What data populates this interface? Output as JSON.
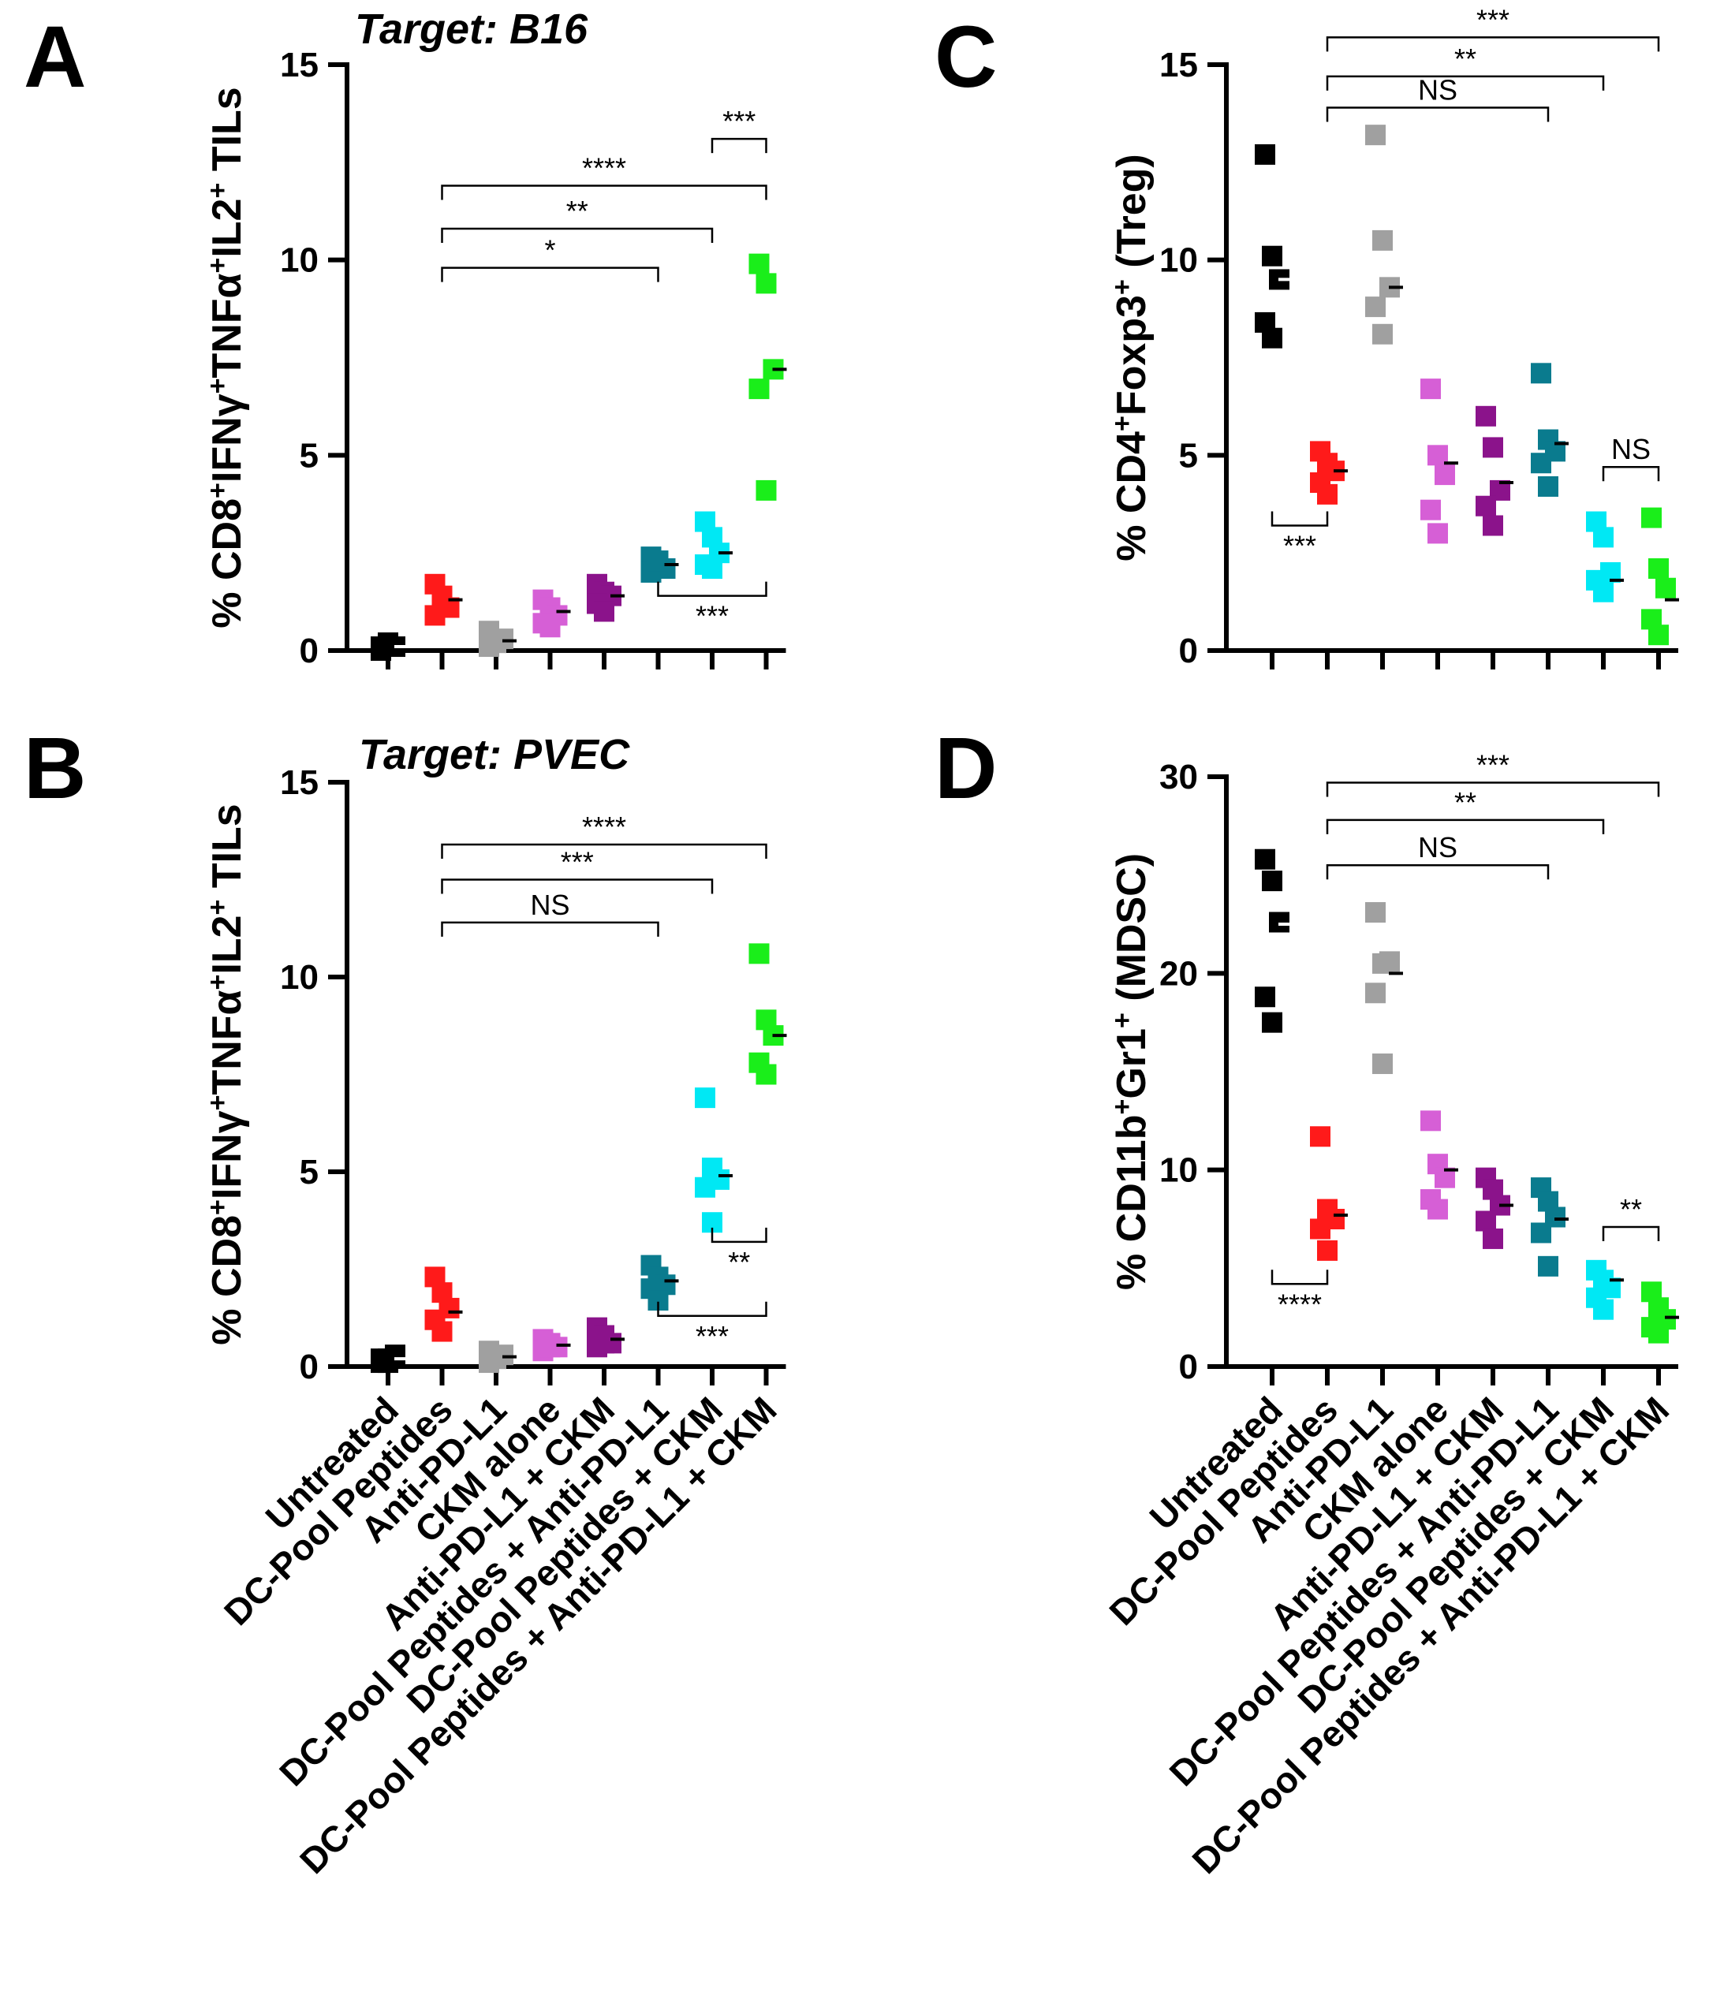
{
  "chart_data": [
    {
      "panel": "A",
      "type": "scatter",
      "title": "Target: B16",
      "ylabel_parts": [
        {
          "t": "% CD8"
        },
        {
          "t": "+",
          "sup": true
        },
        {
          "t": "IFNγ"
        },
        {
          "t": "+",
          "sup": true
        },
        {
          "t": "TNFα"
        },
        {
          "t": "+",
          "sup": true
        },
        {
          "t": "IL2"
        },
        {
          "t": "+",
          "sup": true
        },
        {
          "t": " TILs"
        }
      ],
      "ylim": [
        0,
        15
      ],
      "yticks": [
        0,
        5,
        10,
        15
      ],
      "categories": [
        "Untreated",
        "DC-Pool Peptides",
        "Anti-PD-L1",
        "CKM alone",
        "Anti-PD-L1 + CKM",
        "DC-Pool Peptides + Anti-PD-L1",
        "DC-Pool Peptides + CKM",
        "DC-Pool Peptides + Anti-PD-L1 + CKM"
      ],
      "show_category_labels": false,
      "values": [
        [
          0.1,
          0.2,
          0.1,
          0.0,
          0.2
        ],
        [
          1.7,
          1.4,
          1.1,
          0.9,
          1.2
        ],
        [
          0.5,
          0.2,
          0.3,
          0.1,
          0.2
        ],
        [
          1.3,
          1.1,
          0.9,
          0.7,
          0.6
        ],
        [
          1.7,
          1.5,
          1.4,
          1.2,
          1.0
        ],
        [
          2.4,
          2.2,
          2.1,
          2.0,
          2.3
        ],
        [
          3.3,
          2.9,
          2.5,
          2.2,
          2.1
        ],
        [
          9.9,
          9.4,
          7.2,
          6.7,
          4.1
        ]
      ],
      "means": [
        0.1,
        1.3,
        0.25,
        1.0,
        1.4,
        2.2,
        2.5,
        7.2
      ],
      "brackets": [
        {
          "from": 1,
          "to": 5,
          "y": 9.8,
          "label": "*",
          "side": "above"
        },
        {
          "from": 1,
          "to": 6,
          "y": 10.8,
          "label": "**",
          "side": "above"
        },
        {
          "from": 1,
          "to": 7,
          "y": 11.9,
          "label": "****",
          "side": "above"
        },
        {
          "from": 6,
          "to": 7,
          "y": 13.1,
          "label": "***",
          "side": "above"
        },
        {
          "from": 5,
          "to": 7,
          "y": 1.4,
          "label": "***",
          "side": "below"
        }
      ]
    },
    {
      "panel": "B",
      "type": "scatter",
      "title": "Target: PVEC",
      "ylabel_parts": [
        {
          "t": "% CD8"
        },
        {
          "t": "+",
          "sup": true
        },
        {
          "t": "IFNγ"
        },
        {
          "t": "+",
          "sup": true
        },
        {
          "t": "TNFα"
        },
        {
          "t": "+",
          "sup": true
        },
        {
          "t": "IL2"
        },
        {
          "t": "+",
          "sup": true
        },
        {
          "t": " TILs"
        }
      ],
      "ylim": [
        0,
        15
      ],
      "yticks": [
        0,
        5,
        10,
        15
      ],
      "categories": [
        "Untreated",
        "DC-Pool Peptides",
        "Anti-PD-L1",
        "CKM alone",
        "Anti-PD-L1 + CKM",
        "DC-Pool Peptides + Anti-PD-L1",
        "DC-Pool Peptides + CKM",
        "DC-Pool Peptides + Anti-PD-L1 + CKM"
      ],
      "show_category_labels": true,
      "values": [
        [
          0.2,
          0.1,
          0.3,
          0.1,
          0.2
        ],
        [
          2.3,
          1.9,
          1.5,
          1.2,
          0.9
        ],
        [
          0.4,
          0.2,
          0.3,
          0.1,
          0.2
        ],
        [
          0.7,
          0.6,
          0.5,
          0.4,
          0.5
        ],
        [
          1.0,
          0.8,
          0.6,
          0.5,
          0.6
        ],
        [
          2.6,
          2.3,
          2.1,
          2.0,
          1.7
        ],
        [
          6.9,
          5.1,
          4.8,
          4.6,
          3.7
        ],
        [
          10.6,
          8.9,
          8.5,
          7.8,
          7.5
        ]
      ],
      "means": [
        0.2,
        1.4,
        0.25,
        0.55,
        0.7,
        2.2,
        4.9,
        8.5
      ],
      "brackets": [
        {
          "from": 1,
          "to": 5,
          "y": 11.4,
          "label": "NS",
          "side": "above"
        },
        {
          "from": 1,
          "to": 6,
          "y": 12.5,
          "label": "***",
          "side": "above"
        },
        {
          "from": 1,
          "to": 7,
          "y": 13.4,
          "label": "****",
          "side": "above"
        },
        {
          "from": 6,
          "to": 7,
          "y": 3.2,
          "label": "**",
          "side": "below"
        },
        {
          "from": 5,
          "to": 7,
          "y": 1.3,
          "label": "***",
          "side": "below"
        }
      ]
    },
    {
      "panel": "C",
      "type": "scatter",
      "title": "",
      "ylabel_parts": [
        {
          "t": "% CD4"
        },
        {
          "t": "+",
          "sup": true
        },
        {
          "t": "Foxp3"
        },
        {
          "t": "+",
          "sup": true
        },
        {
          "t": " (Treg)"
        }
      ],
      "ylim": [
        0,
        15
      ],
      "yticks": [
        0,
        5,
        10,
        15
      ],
      "categories": [
        "Untreated",
        "DC-Pool Peptides",
        "Anti-PD-L1",
        "CKM alone",
        "Anti-PD-L1 + CKM",
        "DC-Pool Peptides + Anti-PD-L1",
        "DC-Pool Peptides + CKM",
        "DC-Pool Peptides + Anti-PD-L1 + CKM"
      ],
      "show_category_labels": false,
      "values": [
        [
          12.7,
          10.1,
          9.5,
          8.4,
          8.0
        ],
        [
          5.1,
          4.8,
          4.6,
          4.3,
          4.0
        ],
        [
          13.2,
          10.5,
          9.3,
          8.8,
          8.1
        ],
        [
          6.7,
          5.0,
          4.5,
          3.6,
          3.0
        ],
        [
          6.0,
          5.2,
          4.1,
          3.7,
          3.2
        ],
        [
          7.1,
          5.4,
          5.1,
          4.8,
          4.2
        ],
        [
          3.3,
          2.9,
          2.0,
          1.8,
          1.5
        ],
        [
          3.4,
          2.1,
          1.6,
          0.8,
          0.4
        ]
      ],
      "means": [
        9.5,
        4.6,
        9.3,
        4.8,
        4.3,
        5.3,
        1.8,
        1.3
      ],
      "brackets": [
        {
          "from": 1,
          "to": 5,
          "y": 13.9,
          "label": "NS",
          "side": "above"
        },
        {
          "from": 1,
          "to": 6,
          "y": 14.7,
          "label": "**",
          "side": "above"
        },
        {
          "from": 1,
          "to": 7,
          "y": 15.7,
          "label": "***",
          "side": "above"
        },
        {
          "from": 6,
          "to": 7,
          "y": 4.7,
          "label": "NS",
          "side": "above"
        },
        {
          "from": 0,
          "to": 1,
          "y": 3.2,
          "label": "***",
          "side": "below"
        }
      ]
    },
    {
      "panel": "D",
      "type": "scatter",
      "title": "",
      "ylabel_parts": [
        {
          "t": "% CD11b"
        },
        {
          "t": "+",
          "sup": true
        },
        {
          "t": "Gr1"
        },
        {
          "t": "+",
          "sup": true
        },
        {
          "t": " (MDSC)"
        }
      ],
      "ylim": [
        0,
        30
      ],
      "yticks": [
        0,
        10,
        20,
        30
      ],
      "categories": [
        "Untreated",
        "DC-Pool Peptides",
        "Anti-PD-L1",
        "CKM alone",
        "Anti-PD-L1 + CKM",
        "DC-Pool Peptides + Anti-PD-L1",
        "DC-Pool Peptides + CKM",
        "DC-Pool Peptides + Anti-PD-L1 + CKM"
      ],
      "show_category_labels": true,
      "values": [
        [
          25.8,
          24.7,
          22.6,
          18.8,
          17.5
        ],
        [
          11.7,
          8.0,
          7.5,
          7.0,
          5.9
        ],
        [
          23.1,
          20.5,
          20.6,
          19.0,
          15.4
        ],
        [
          12.5,
          10.3,
          9.6,
          8.5,
          8.0
        ],
        [
          9.6,
          9.0,
          8.2,
          7.4,
          6.5
        ],
        [
          9.1,
          8.4,
          7.6,
          6.8,
          5.1
        ],
        [
          4.9,
          4.4,
          4.0,
          3.5,
          2.9
        ],
        [
          3.8,
          3.0,
          2.4,
          2.0,
          1.7
        ]
      ],
      "means": [
        22.5,
        7.7,
        20.0,
        10.0,
        8.2,
        7.5,
        4.4,
        2.5
      ],
      "brackets": [
        {
          "from": 1,
          "to": 5,
          "y": 25.5,
          "label": "NS",
          "side": "above"
        },
        {
          "from": 1,
          "to": 6,
          "y": 27.8,
          "label": "**",
          "side": "above"
        },
        {
          "from": 1,
          "to": 7,
          "y": 29.7,
          "label": "***",
          "side": "above"
        },
        {
          "from": 6,
          "to": 7,
          "y": 7.1,
          "label": "**",
          "side": "above"
        },
        {
          "from": 0,
          "to": 1,
          "y": 4.2,
          "label": "****",
          "side": "below"
        }
      ]
    }
  ],
  "group_colors": [
    "#000000",
    "#ff1a1a",
    "#a0a0a0",
    "#d65fd6",
    "#8b138b",
    "#0a7b8e",
    "#00e8f4",
    "#1aee1a"
  ]
}
